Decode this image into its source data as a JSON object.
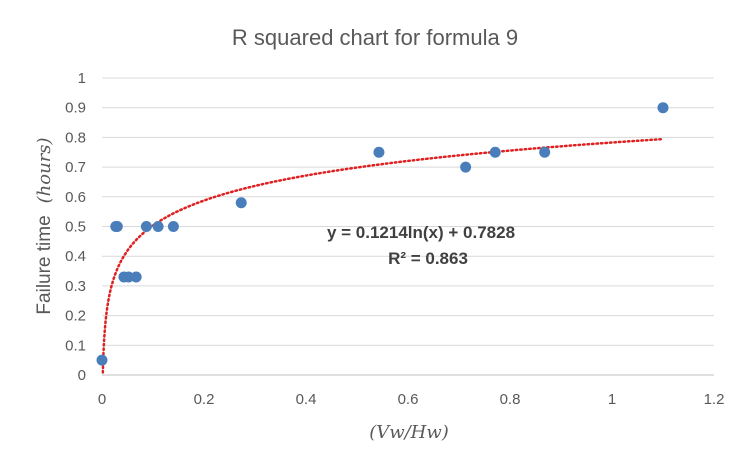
{
  "chart_data": {
    "type": "scatter",
    "title": "R squared chart for formula 9",
    "xlabel": "(Vw/Hw)",
    "ylabel_prefix": "Failure time",
    "ylabel_unit": "(hours)",
    "xlim": [
      0,
      1.2
    ],
    "ylim": [
      0,
      1
    ],
    "x_ticks": [
      "0",
      "0.2",
      "0.4",
      "0.6",
      "0.8",
      "1",
      "1.2"
    ],
    "y_ticks": [
      "0",
      "0.1",
      "0.2",
      "0.3",
      "0.4",
      "0.5",
      "0.6",
      "0.7",
      "0.8",
      "0.9",
      "1"
    ],
    "grid": "horizontal",
    "points": [
      {
        "x": 0.0,
        "y": 0.05
      },
      {
        "x": 0.027,
        "y": 0.5
      },
      {
        "x": 0.03,
        "y": 0.5
      },
      {
        "x": 0.043,
        "y": 0.33
      },
      {
        "x": 0.052,
        "y": 0.33
      },
      {
        "x": 0.067,
        "y": 0.33
      },
      {
        "x": 0.087,
        "y": 0.5
      },
      {
        "x": 0.11,
        "y": 0.5
      },
      {
        "x": 0.14,
        "y": 0.5
      },
      {
        "x": 0.273,
        "y": 0.58
      },
      {
        "x": 0.543,
        "y": 0.75
      },
      {
        "x": 0.713,
        "y": 0.7
      },
      {
        "x": 0.771,
        "y": 0.75
      },
      {
        "x": 0.868,
        "y": 0.75
      },
      {
        "x": 1.1,
        "y": 0.9
      }
    ],
    "trendline": {
      "type": "logarithmic",
      "a": 0.1214,
      "b": 0.7828,
      "x_range": [
        0.0017,
        1.1
      ],
      "color": "#e02020"
    },
    "equation": "y = 0.1214ln(x) + 0.7828",
    "r_squared": "R² = 0.863",
    "point_color": "#4a7ebb",
    "grid_color": "#d9d9d9"
  }
}
